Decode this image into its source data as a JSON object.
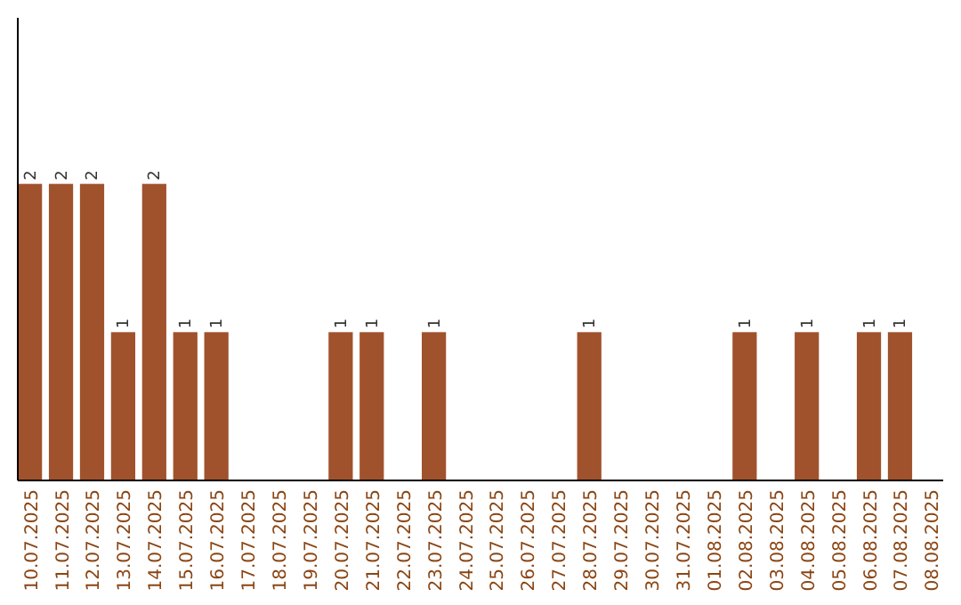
{
  "chart_data": {
    "type": "bar",
    "categories": [
      "10.07.2025",
      "11.07.2025",
      "12.07.2025",
      "13.07.2025",
      "14.07.2025",
      "15.07.2025",
      "16.07.2025",
      "17.07.2025",
      "18.07.2025",
      "19.07.2025",
      "20.07.2025",
      "21.07.2025",
      "22.07.2025",
      "23.07.2025",
      "24.07.2025",
      "25.07.2025",
      "26.07.2025",
      "27.07.2025",
      "28.07.2025",
      "29.07.2025",
      "30.07.2025",
      "31.07.2025",
      "01.08.2025",
      "02.08.2025",
      "03.08.2025",
      "04.08.2025",
      "05.08.2025",
      "06.08.2025",
      "07.08.2025",
      "08.08.2025"
    ],
    "values": [
      2,
      2,
      2,
      1,
      2,
      1,
      1,
      0,
      0,
      0,
      1,
      1,
      0,
      1,
      0,
      0,
      0,
      0,
      1,
      0,
      0,
      0,
      0,
      1,
      0,
      1,
      0,
      1,
      1,
      0
    ],
    "value_labels": [
      "2",
      "2",
      "2",
      "1",
      "2",
      "1",
      "1",
      null,
      null,
      null,
      "1",
      "1",
      null,
      "1",
      null,
      null,
      null,
      null,
      "1",
      null,
      null,
      null,
      null,
      "1",
      null,
      "1",
      null,
      "1",
      "1",
      null
    ],
    "color": "#a0522d",
    "tick_labels": "x"
  }
}
